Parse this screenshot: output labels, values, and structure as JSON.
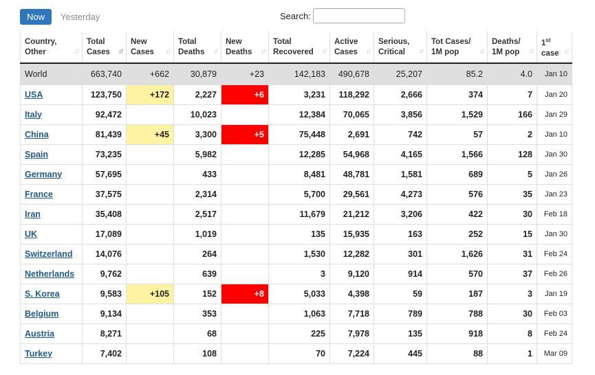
{
  "toolbar": {
    "now_label": "Now",
    "yesterday_label": "Yesterday",
    "search_label": "Search:",
    "search_value": "",
    "search_placeholder": ""
  },
  "colors": {
    "accent": "#2e77be",
    "new_cases_highlight": "#fff3a3",
    "new_deaths_highlight": "#ff0000",
    "world_row_bg": "#dfdfdf",
    "country_link": "#1f5c8b"
  },
  "table": {
    "columns": [
      {
        "key": "country",
        "line1": "Country,",
        "line2": "Other"
      },
      {
        "key": "total_cases",
        "line1": "Total",
        "line2": "Cases",
        "sorted": true
      },
      {
        "key": "new_cases",
        "line1": "New",
        "line2": "Cases"
      },
      {
        "key": "total_deaths",
        "line1": "Total",
        "line2": "Deaths"
      },
      {
        "key": "new_deaths",
        "line1": "New",
        "line2": "Deaths"
      },
      {
        "key": "total_recovered",
        "line1": "Total",
        "line2": "Recovered"
      },
      {
        "key": "active_cases",
        "line1": "Active",
        "line2": "Cases"
      },
      {
        "key": "serious_critical",
        "line1": "Serious,",
        "line2": "Critical"
      },
      {
        "key": "tot_cases_1m",
        "line1": "Tot Cases/",
        "line2": "1M pop"
      },
      {
        "key": "deaths_1m",
        "line1": "Deaths/",
        "line2": "1M pop"
      },
      {
        "key": "first_case",
        "line1": "1",
        "line1_sup": "st",
        "line2": "case"
      }
    ],
    "rows": [
      {
        "country": "World",
        "total_cases": "663,740",
        "new_cases": "+662",
        "total_deaths": "30,879",
        "new_deaths": "+23",
        "total_recovered": "142,183",
        "active_cases": "490,678",
        "serious_critical": "25,207",
        "tot_cases_1m": "85.2",
        "deaths_1m": "4.0",
        "first_case": "Jan 10",
        "is_world": true
      },
      {
        "country": "USA",
        "total_cases": "123,750",
        "new_cases": "+172",
        "total_deaths": "2,227",
        "new_deaths": "+6",
        "total_recovered": "3,231",
        "active_cases": "118,292",
        "serious_critical": "2,666",
        "tot_cases_1m": "374",
        "deaths_1m": "7",
        "first_case": "Jan 20"
      },
      {
        "country": "Italy",
        "total_cases": "92,472",
        "new_cases": "",
        "total_deaths": "10,023",
        "new_deaths": "",
        "total_recovered": "12,384",
        "active_cases": "70,065",
        "serious_critical": "3,856",
        "tot_cases_1m": "1,529",
        "deaths_1m": "166",
        "first_case": "Jan 29"
      },
      {
        "country": "China",
        "total_cases": "81,439",
        "new_cases": "+45",
        "total_deaths": "3,300",
        "new_deaths": "+5",
        "total_recovered": "75,448",
        "active_cases": "2,691",
        "serious_critical": "742",
        "tot_cases_1m": "57",
        "deaths_1m": "2",
        "first_case": "Jan 10"
      },
      {
        "country": "Spain",
        "total_cases": "73,235",
        "new_cases": "",
        "total_deaths": "5,982",
        "new_deaths": "",
        "total_recovered": "12,285",
        "active_cases": "54,968",
        "serious_critical": "4,165",
        "tot_cases_1m": "1,566",
        "deaths_1m": "128",
        "first_case": "Jan 30"
      },
      {
        "country": "Germany",
        "total_cases": "57,695",
        "new_cases": "",
        "total_deaths": "433",
        "new_deaths": "",
        "total_recovered": "8,481",
        "active_cases": "48,781",
        "serious_critical": "1,581",
        "tot_cases_1m": "689",
        "deaths_1m": "5",
        "first_case": "Jan 26"
      },
      {
        "country": "France",
        "total_cases": "37,575",
        "new_cases": "",
        "total_deaths": "2,314",
        "new_deaths": "",
        "total_recovered": "5,700",
        "active_cases": "29,561",
        "serious_critical": "4,273",
        "tot_cases_1m": "576",
        "deaths_1m": "35",
        "first_case": "Jan 23"
      },
      {
        "country": "Iran",
        "total_cases": "35,408",
        "new_cases": "",
        "total_deaths": "2,517",
        "new_deaths": "",
        "total_recovered": "11,679",
        "active_cases": "21,212",
        "serious_critical": "3,206",
        "tot_cases_1m": "422",
        "deaths_1m": "30",
        "first_case": "Feb 18"
      },
      {
        "country": "UK",
        "total_cases": "17,089",
        "new_cases": "",
        "total_deaths": "1,019",
        "new_deaths": "",
        "total_recovered": "135",
        "active_cases": "15,935",
        "serious_critical": "163",
        "tot_cases_1m": "252",
        "deaths_1m": "15",
        "first_case": "Jan 30"
      },
      {
        "country": "Switzerland",
        "total_cases": "14,076",
        "new_cases": "",
        "total_deaths": "264",
        "new_deaths": "",
        "total_recovered": "1,530",
        "active_cases": "12,282",
        "serious_critical": "301",
        "tot_cases_1m": "1,626",
        "deaths_1m": "31",
        "first_case": "Feb 24"
      },
      {
        "country": "Netherlands",
        "total_cases": "9,762",
        "new_cases": "",
        "total_deaths": "639",
        "new_deaths": "",
        "total_recovered": "3",
        "active_cases": "9,120",
        "serious_critical": "914",
        "tot_cases_1m": "570",
        "deaths_1m": "37",
        "first_case": "Feb 26"
      },
      {
        "country": "S. Korea",
        "total_cases": "9,583",
        "new_cases": "+105",
        "total_deaths": "152",
        "new_deaths": "+8",
        "total_recovered": "5,033",
        "active_cases": "4,398",
        "serious_critical": "59",
        "tot_cases_1m": "187",
        "deaths_1m": "3",
        "first_case": "Jan 19"
      },
      {
        "country": "Belgium",
        "total_cases": "9,134",
        "new_cases": "",
        "total_deaths": "353",
        "new_deaths": "",
        "total_recovered": "1,063",
        "active_cases": "7,718",
        "serious_critical": "789",
        "tot_cases_1m": "788",
        "deaths_1m": "30",
        "first_case": "Feb 03"
      },
      {
        "country": "Austria",
        "total_cases": "8,271",
        "new_cases": "",
        "total_deaths": "68",
        "new_deaths": "",
        "total_recovered": "225",
        "active_cases": "7,978",
        "serious_critical": "135",
        "tot_cases_1m": "918",
        "deaths_1m": "8",
        "first_case": "Feb 24"
      },
      {
        "country": "Turkey",
        "total_cases": "7,402",
        "new_cases": "",
        "total_deaths": "108",
        "new_deaths": "",
        "total_recovered": "70",
        "active_cases": "7,224",
        "serious_critical": "445",
        "tot_cases_1m": "88",
        "deaths_1m": "1",
        "first_case": "Mar 09"
      }
    ]
  }
}
